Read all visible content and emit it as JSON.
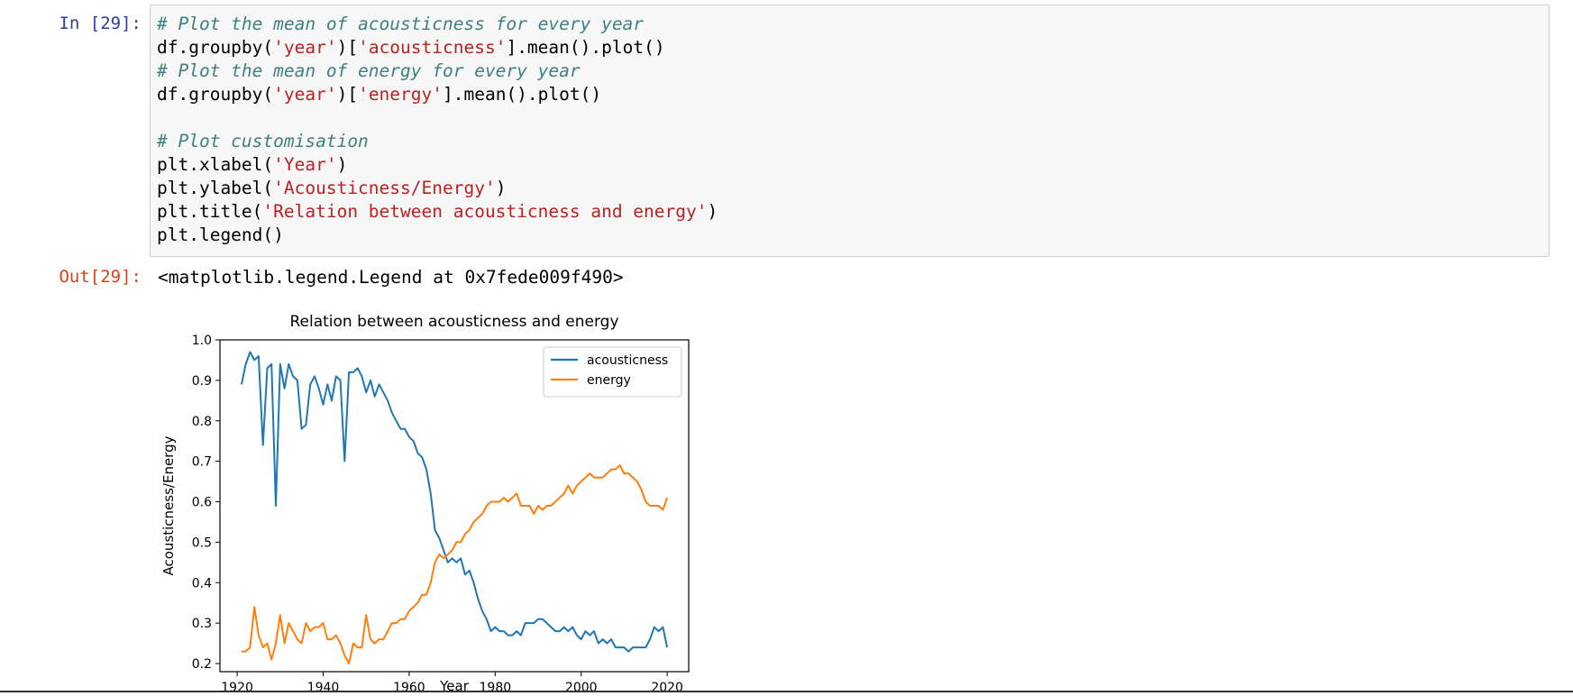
{
  "cell": {
    "in_prompt": "In [29]:",
    "out_prompt": "Out[29]:",
    "output_text": "<matplotlib.legend.Legend at 0x7fede009f490>",
    "code_lines": [
      [
        {
          "t": "# Plot the mean of acousticness for every year",
          "c": "comment"
        }
      ],
      [
        {
          "t": "df.groupby(",
          "c": ""
        },
        {
          "t": "'year'",
          "c": "str"
        },
        {
          "t": ")[",
          "c": ""
        },
        {
          "t": "'acousticness'",
          "c": "str"
        },
        {
          "t": "].mean().plot()",
          "c": ""
        }
      ],
      [
        {
          "t": "# Plot the mean of energy for every year",
          "c": "comment"
        }
      ],
      [
        {
          "t": "df.groupby(",
          "c": ""
        },
        {
          "t": "'year'",
          "c": "str"
        },
        {
          "t": ")[",
          "c": ""
        },
        {
          "t": "'energy'",
          "c": "str"
        },
        {
          "t": "].mean().plot()",
          "c": ""
        }
      ],
      [],
      [
        {
          "t": "# Plot customisation",
          "c": "comment"
        }
      ],
      [
        {
          "t": "plt.xlabel(",
          "c": ""
        },
        {
          "t": "'Year'",
          "c": "str"
        },
        {
          "t": ")",
          "c": ""
        }
      ],
      [
        {
          "t": "plt.ylabel(",
          "c": ""
        },
        {
          "t": "'Acousticness/Energy'",
          "c": "str"
        },
        {
          "t": ")",
          "c": ""
        }
      ],
      [
        {
          "t": "plt.title(",
          "c": ""
        },
        {
          "t": "'Relation between acousticness and energy'",
          "c": "str"
        },
        {
          "t": ")",
          "c": ""
        }
      ],
      [
        {
          "t": "plt.legend()",
          "c": ""
        }
      ]
    ]
  },
  "colors": {
    "acousticness": "#1f77b4",
    "energy": "#ff7f0e"
  },
  "chart_data": {
    "type": "line",
    "title": "Relation between acousticness and energy",
    "xlabel": "Year",
    "ylabel": "Acousticness/Energy",
    "xlim": [
      1916,
      2025
    ],
    "ylim": [
      0.18,
      1.0
    ],
    "xticks": [
      1920,
      1940,
      1960,
      1980,
      2000,
      2020
    ],
    "yticks": [
      0.2,
      0.3,
      0.4,
      0.5,
      0.6,
      0.7,
      0.8,
      0.9,
      1.0
    ],
    "legend_position": "top-right",
    "grid": false,
    "series": [
      {
        "name": "acousticness",
        "points": [
          [
            1921,
            0.89
          ],
          [
            1922,
            0.94
          ],
          [
            1923,
            0.97
          ],
          [
            1924,
            0.95
          ],
          [
            1925,
            0.96
          ],
          [
            1926,
            0.74
          ],
          [
            1927,
            0.93
          ],
          [
            1928,
            0.94
          ],
          [
            1929,
            0.59
          ],
          [
            1930,
            0.94
          ],
          [
            1931,
            0.88
          ],
          [
            1932,
            0.94
          ],
          [
            1933,
            0.91
          ],
          [
            1934,
            0.9
          ],
          [
            1935,
            0.78
          ],
          [
            1936,
            0.79
          ],
          [
            1937,
            0.89
          ],
          [
            1938,
            0.91
          ],
          [
            1939,
            0.88
          ],
          [
            1940,
            0.84
          ],
          [
            1941,
            0.89
          ],
          [
            1942,
            0.85
          ],
          [
            1943,
            0.91
          ],
          [
            1944,
            0.9
          ],
          [
            1945,
            0.7
          ],
          [
            1946,
            0.92
          ],
          [
            1947,
            0.92
          ],
          [
            1948,
            0.93
          ],
          [
            1949,
            0.91
          ],
          [
            1950,
            0.87
          ],
          [
            1951,
            0.9
          ],
          [
            1952,
            0.86
          ],
          [
            1953,
            0.89
          ],
          [
            1954,
            0.87
          ],
          [
            1955,
            0.85
          ],
          [
            1956,
            0.82
          ],
          [
            1957,
            0.8
          ],
          [
            1958,
            0.78
          ],
          [
            1959,
            0.78
          ],
          [
            1960,
            0.76
          ],
          [
            1961,
            0.75
          ],
          [
            1962,
            0.72
          ],
          [
            1963,
            0.71
          ],
          [
            1964,
            0.68
          ],
          [
            1965,
            0.62
          ],
          [
            1966,
            0.53
          ],
          [
            1967,
            0.51
          ],
          [
            1968,
            0.48
          ],
          [
            1969,
            0.45
          ],
          [
            1970,
            0.46
          ],
          [
            1971,
            0.45
          ],
          [
            1972,
            0.46
          ],
          [
            1973,
            0.42
          ],
          [
            1974,
            0.43
          ],
          [
            1975,
            0.4
          ],
          [
            1976,
            0.36
          ],
          [
            1977,
            0.33
          ],
          [
            1978,
            0.31
          ],
          [
            1979,
            0.28
          ],
          [
            1980,
            0.29
          ],
          [
            1981,
            0.28
          ],
          [
            1982,
            0.28
          ],
          [
            1983,
            0.27
          ],
          [
            1984,
            0.27
          ],
          [
            1985,
            0.28
          ],
          [
            1986,
            0.27
          ],
          [
            1987,
            0.3
          ],
          [
            1988,
            0.3
          ],
          [
            1989,
            0.3
          ],
          [
            1990,
            0.31
          ],
          [
            1991,
            0.31
          ],
          [
            1992,
            0.3
          ],
          [
            1993,
            0.29
          ],
          [
            1994,
            0.28
          ],
          [
            1995,
            0.28
          ],
          [
            1996,
            0.29
          ],
          [
            1997,
            0.28
          ],
          [
            1998,
            0.29
          ],
          [
            1999,
            0.27
          ],
          [
            2000,
            0.26
          ],
          [
            2001,
            0.28
          ],
          [
            2002,
            0.27
          ],
          [
            2003,
            0.28
          ],
          [
            2004,
            0.25
          ],
          [
            2005,
            0.26
          ],
          [
            2006,
            0.25
          ],
          [
            2007,
            0.26
          ],
          [
            2008,
            0.24
          ],
          [
            2009,
            0.24
          ],
          [
            2010,
            0.24
          ],
          [
            2011,
            0.23
          ],
          [
            2012,
            0.24
          ],
          [
            2013,
            0.24
          ],
          [
            2014,
            0.24
          ],
          [
            2015,
            0.24
          ],
          [
            2016,
            0.26
          ],
          [
            2017,
            0.29
          ],
          [
            2018,
            0.28
          ],
          [
            2019,
            0.29
          ],
          [
            2020,
            0.24
          ]
        ]
      },
      {
        "name": "energy",
        "points": [
          [
            1921,
            0.23
          ],
          [
            1922,
            0.23
          ],
          [
            1923,
            0.24
          ],
          [
            1924,
            0.34
          ],
          [
            1925,
            0.27
          ],
          [
            1926,
            0.24
          ],
          [
            1927,
            0.25
          ],
          [
            1928,
            0.21
          ],
          [
            1929,
            0.25
          ],
          [
            1930,
            0.32
          ],
          [
            1931,
            0.25
          ],
          [
            1932,
            0.3
          ],
          [
            1933,
            0.28
          ],
          [
            1934,
            0.26
          ],
          [
            1935,
            0.25
          ],
          [
            1936,
            0.3
          ],
          [
            1937,
            0.28
          ],
          [
            1938,
            0.29
          ],
          [
            1939,
            0.29
          ],
          [
            1940,
            0.3
          ],
          [
            1941,
            0.26
          ],
          [
            1942,
            0.26
          ],
          [
            1943,
            0.27
          ],
          [
            1944,
            0.25
          ],
          [
            1945,
            0.22
          ],
          [
            1946,
            0.2
          ],
          [
            1947,
            0.25
          ],
          [
            1948,
            0.24
          ],
          [
            1949,
            0.24
          ],
          [
            1950,
            0.32
          ],
          [
            1951,
            0.26
          ],
          [
            1952,
            0.25
          ],
          [
            1953,
            0.26
          ],
          [
            1954,
            0.26
          ],
          [
            1955,
            0.28
          ],
          [
            1956,
            0.3
          ],
          [
            1957,
            0.3
          ],
          [
            1958,
            0.31
          ],
          [
            1959,
            0.31
          ],
          [
            1960,
            0.33
          ],
          [
            1961,
            0.34
          ],
          [
            1962,
            0.35
          ],
          [
            1963,
            0.37
          ],
          [
            1964,
            0.37
          ],
          [
            1965,
            0.4
          ],
          [
            1966,
            0.45
          ],
          [
            1967,
            0.47
          ],
          [
            1968,
            0.46
          ],
          [
            1969,
            0.47
          ],
          [
            1970,
            0.48
          ],
          [
            1971,
            0.5
          ],
          [
            1972,
            0.5
          ],
          [
            1973,
            0.52
          ],
          [
            1974,
            0.53
          ],
          [
            1975,
            0.55
          ],
          [
            1976,
            0.56
          ],
          [
            1977,
            0.57
          ],
          [
            1978,
            0.59
          ],
          [
            1979,
            0.6
          ],
          [
            1980,
            0.6
          ],
          [
            1981,
            0.6
          ],
          [
            1982,
            0.61
          ],
          [
            1983,
            0.6
          ],
          [
            1984,
            0.61
          ],
          [
            1985,
            0.62
          ],
          [
            1986,
            0.59
          ],
          [
            1987,
            0.59
          ],
          [
            1988,
            0.59
          ],
          [
            1989,
            0.57
          ],
          [
            1990,
            0.59
          ],
          [
            1991,
            0.58
          ],
          [
            1992,
            0.59
          ],
          [
            1993,
            0.59
          ],
          [
            1994,
            0.6
          ],
          [
            1995,
            0.61
          ],
          [
            1996,
            0.62
          ],
          [
            1997,
            0.64
          ],
          [
            1998,
            0.62
          ],
          [
            1999,
            0.64
          ],
          [
            2000,
            0.65
          ],
          [
            2001,
            0.66
          ],
          [
            2002,
            0.67
          ],
          [
            2003,
            0.66
          ],
          [
            2004,
            0.66
          ],
          [
            2005,
            0.66
          ],
          [
            2006,
            0.67
          ],
          [
            2007,
            0.68
          ],
          [
            2008,
            0.68
          ],
          [
            2009,
            0.69
          ],
          [
            2010,
            0.67
          ],
          [
            2011,
            0.67
          ],
          [
            2012,
            0.66
          ],
          [
            2013,
            0.65
          ],
          [
            2014,
            0.63
          ],
          [
            2015,
            0.6
          ],
          [
            2016,
            0.59
          ],
          [
            2017,
            0.59
          ],
          [
            2018,
            0.59
          ],
          [
            2019,
            0.58
          ],
          [
            2020,
            0.61
          ]
        ]
      }
    ]
  }
}
